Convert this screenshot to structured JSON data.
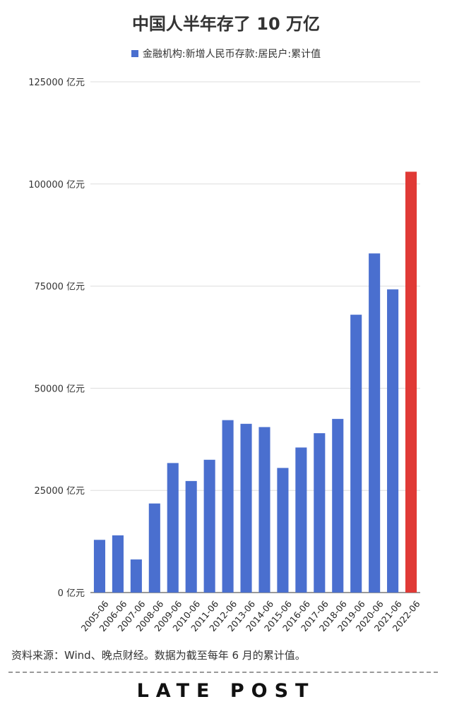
{
  "header": {
    "title": "中国人半年存了 10 万亿",
    "legend_label": "金融机构:新增人民币存款:居民户:累计值"
  },
  "footer": {
    "source_note": "资料来源：Wind、晚点财经。数据为截至每年 6 月的累计值。",
    "logo_text": "LATE POST"
  },
  "colors": {
    "bar": "#4a6fcf",
    "highlight": "#e03a36",
    "grid": "#dddddd",
    "axis": "#333333"
  },
  "chart_data": {
    "type": "bar",
    "title": "中国人半年存了 10 万亿",
    "categories": [
      "2005-06",
      "2006-06",
      "2007-06",
      "2008-06",
      "2009-06",
      "2010-06",
      "2011-06",
      "2012-06",
      "2013-06",
      "2014-06",
      "2015-06",
      "2016-06",
      "2017-06",
      "2018-06",
      "2019-06",
      "2020-06",
      "2021-06",
      "2022-06"
    ],
    "series": [
      {
        "name": "金融机构:新增人民币存款:居民户:累计值",
        "values": [
          12900,
          14000,
          8100,
          21800,
          31700,
          27300,
          32500,
          42200,
          41300,
          40500,
          30500,
          35500,
          39000,
          42500,
          68000,
          83000,
          74200,
          103000
        ]
      }
    ],
    "highlight_category": "2022-06",
    "yticks": [
      0,
      25000,
      50000,
      75000,
      100000,
      125000
    ],
    "ytick_labels": [
      "0 亿元",
      "25000 亿元",
      "50000 亿元",
      "75000 亿元",
      "100000 亿元",
      "125000 亿元"
    ],
    "ylim": [
      0,
      125000
    ],
    "xlabel": "",
    "ylabel": "",
    "grid": true,
    "legend_position": "top-center"
  }
}
